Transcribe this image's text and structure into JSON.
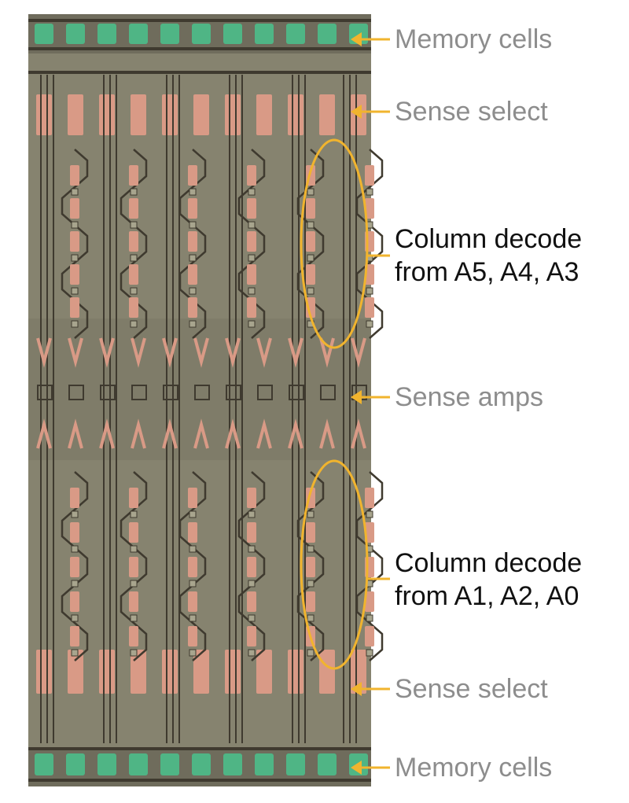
{
  "annotations": {
    "memory_cells_top": "Memory cells",
    "sense_select_top": "Sense select",
    "column_decode_a5_a4_a3": {
      "line1": "Column decode",
      "line2": "from A5, A4, A3"
    },
    "sense_amps": "Sense amps",
    "column_decode_a1_a2_a0": {
      "line1": "Column decode",
      "line2": "from A1, A2, A0"
    },
    "sense_select_bottom": "Sense select",
    "memory_cells_bottom": "Memory cells"
  },
  "colors": {
    "die_background": "#86836f",
    "trace_dark": "#3f3a2f",
    "trace_light": "#a8a58e",
    "polysilicon": "#d99a86",
    "memory_green": "#4fb585",
    "arrow_gold": "#f1b42e",
    "label_gray": "#8d8d8d",
    "label_black": "#111111"
  }
}
